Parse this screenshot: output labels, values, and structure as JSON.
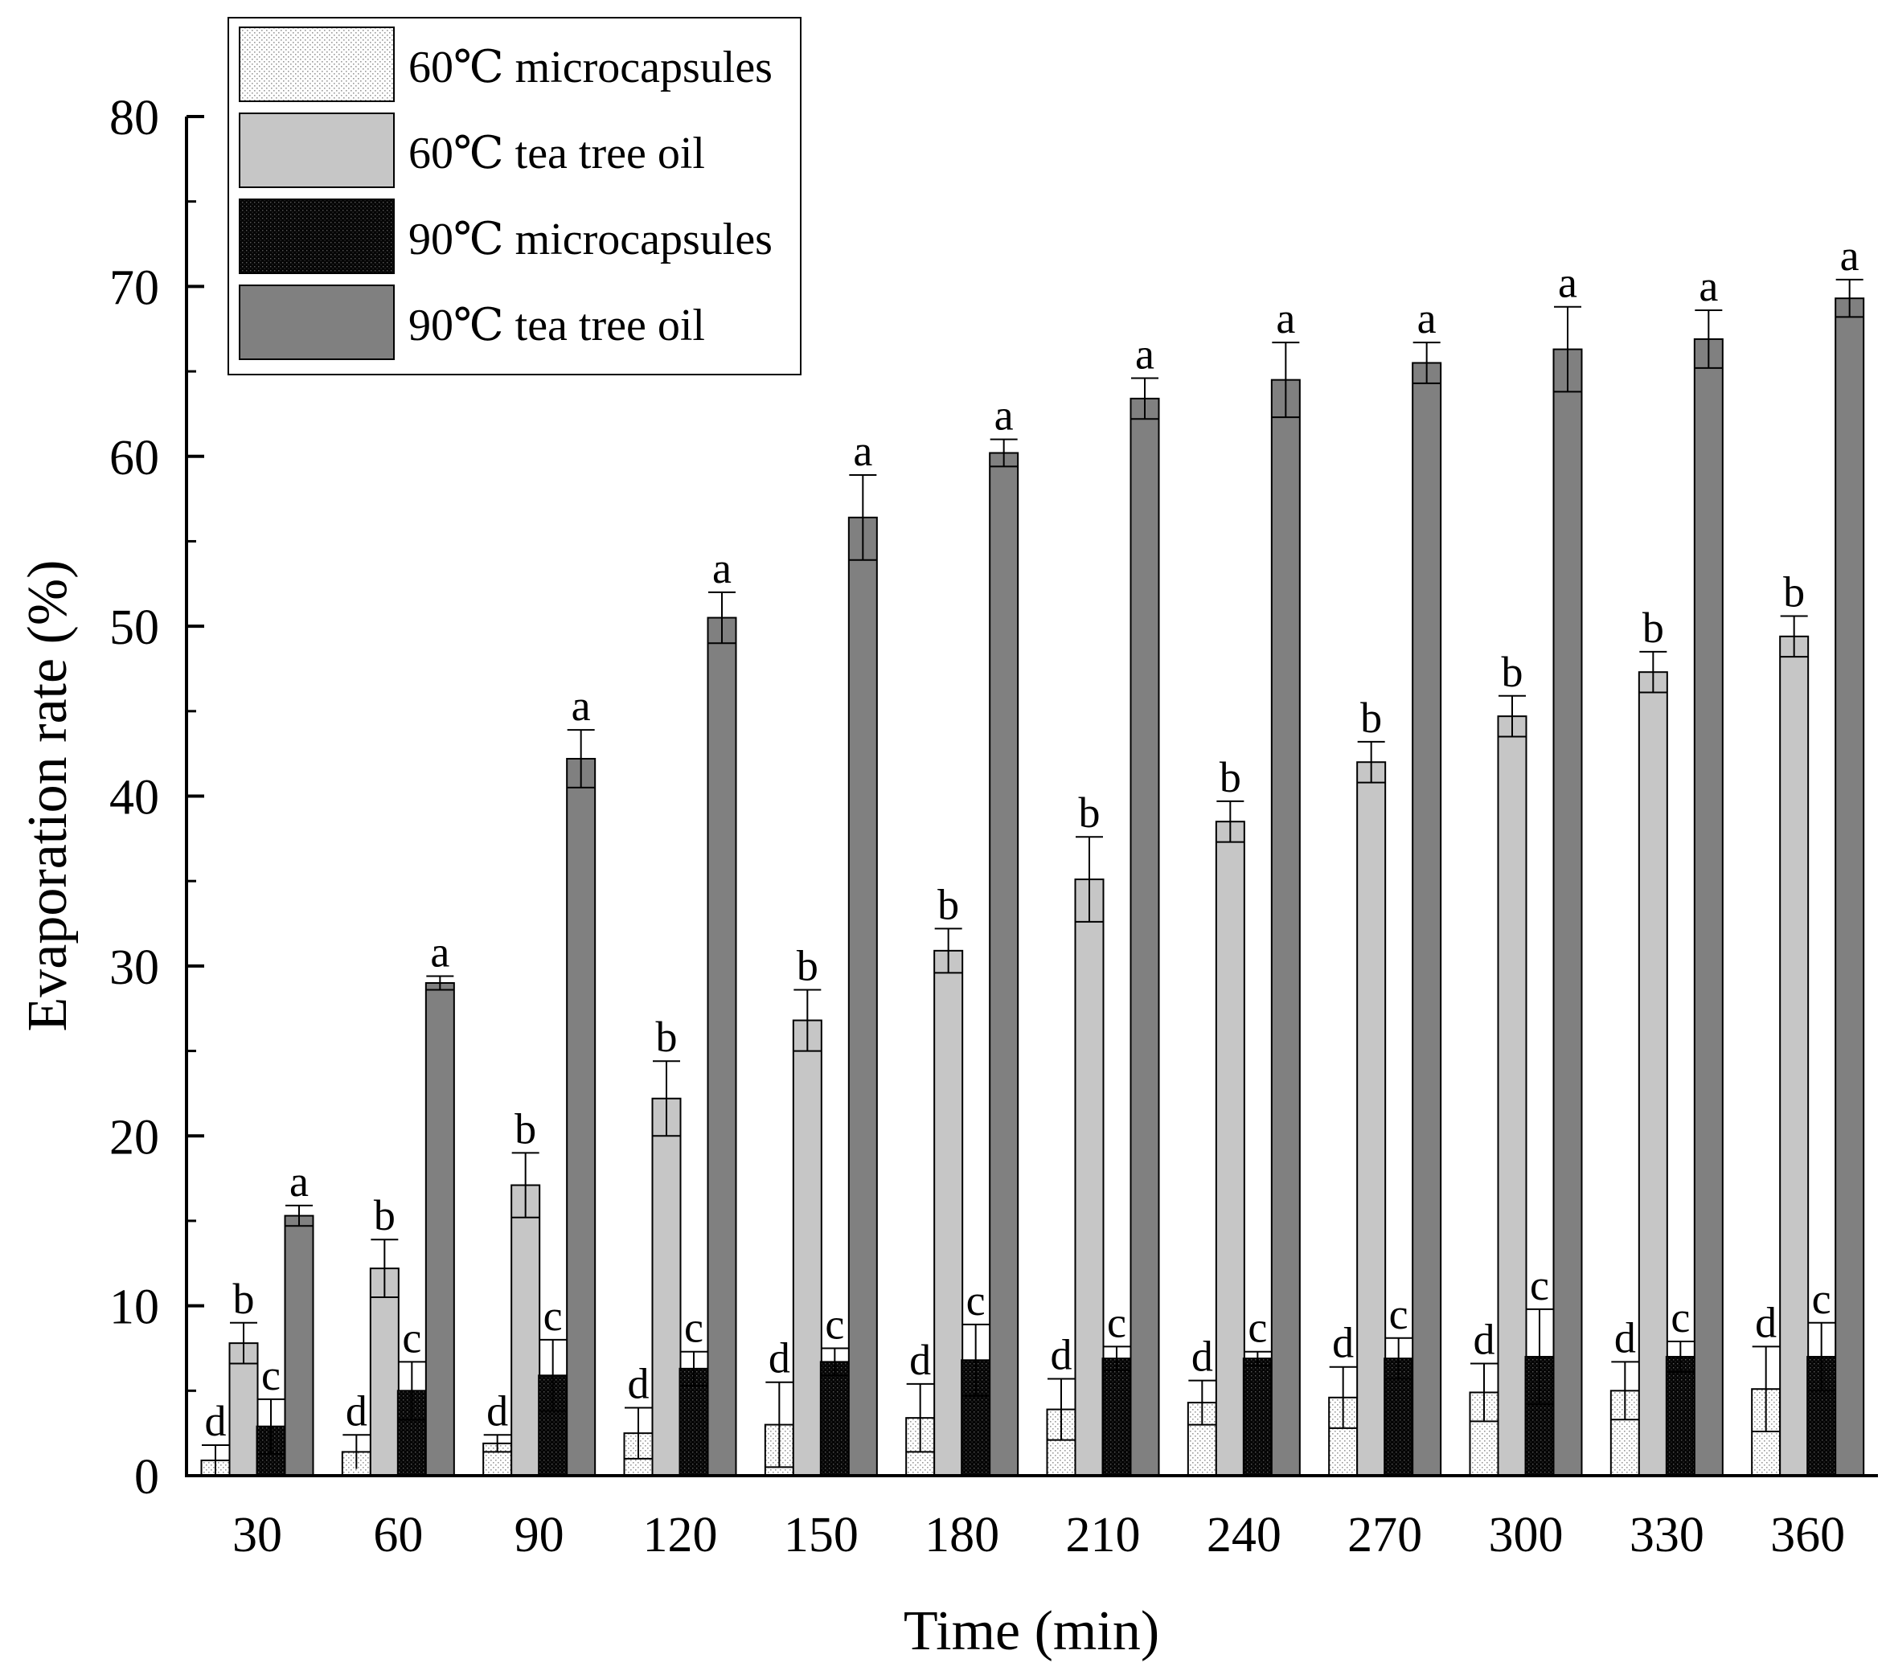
{
  "chart_data": {
    "type": "bar",
    "title": "",
    "xlabel": "Time (min)",
    "ylabel": "Evaporation rate (%)",
    "ylim": [
      0,
      80
    ],
    "yticks": [
      0,
      10,
      20,
      30,
      40,
      50,
      60,
      70,
      80
    ],
    "grid": false,
    "legend_position": "top-left",
    "categories": [
      "30",
      "60",
      "90",
      "120",
      "150",
      "180",
      "210",
      "240",
      "270",
      "300",
      "330",
      "360"
    ],
    "series": [
      {
        "name": "60℃ microcapsules",
        "pattern": "dots-light",
        "color": "#ffffff",
        "values": [
          0.9,
          1.4,
          1.9,
          2.5,
          3.0,
          3.4,
          3.9,
          4.3,
          4.6,
          4.9,
          5.0,
          5.1
        ],
        "errors": [
          0.9,
          1.0,
          0.5,
          1.5,
          2.5,
          2.0,
          1.8,
          1.3,
          1.8,
          1.7,
          1.7,
          2.5
        ],
        "letters": [
          "d",
          "d",
          "d",
          "d",
          "d",
          "d",
          "d",
          "d",
          "d",
          "d",
          "d",
          "d"
        ]
      },
      {
        "name": "60℃ tea tree oil",
        "pattern": "solid",
        "color": "#c6c6c6",
        "values": [
          7.8,
          12.2,
          17.1,
          22.2,
          26.8,
          30.9,
          35.1,
          38.5,
          42.0,
          44.7,
          47.3,
          49.4
        ],
        "errors": [
          1.2,
          1.7,
          1.9,
          2.2,
          1.8,
          1.3,
          2.5,
          1.2,
          1.2,
          1.2,
          1.2,
          1.2
        ],
        "letters": [
          "b",
          "b",
          "b",
          "b",
          "b",
          "b",
          "b",
          "b",
          "b",
          "b",
          "b",
          "b"
        ]
      },
      {
        "name": "90℃ microcapsules",
        "pattern": "dots-dark",
        "color": "#111111",
        "values": [
          2.9,
          5.0,
          5.9,
          6.3,
          6.7,
          6.8,
          6.9,
          6.9,
          6.9,
          7.0,
          7.0,
          7.0
        ],
        "errors": [
          1.6,
          1.7,
          2.1,
          1.0,
          0.8,
          2.1,
          0.7,
          0.4,
          1.2,
          2.8,
          0.9,
          2.0
        ],
        "letters": [
          "c",
          "c",
          "c",
          "c",
          "c",
          "c",
          "c",
          "c",
          "c",
          "c",
          "c",
          "c"
        ]
      },
      {
        "name": "90℃ tea tree oil",
        "pattern": "solid",
        "color": "#808080",
        "values": [
          15.3,
          29.0,
          42.2,
          50.5,
          56.4,
          60.2,
          63.4,
          64.5,
          65.5,
          66.3,
          66.9,
          69.3
        ],
        "errors": [
          0.6,
          0.4,
          1.7,
          1.5,
          2.5,
          0.8,
          1.2,
          2.2,
          1.2,
          2.5,
          1.7,
          1.1
        ],
        "letters": [
          "a",
          "a",
          "a",
          "a",
          "a",
          "a",
          "a",
          "a",
          "a",
          "a",
          "a",
          "a"
        ]
      }
    ]
  }
}
